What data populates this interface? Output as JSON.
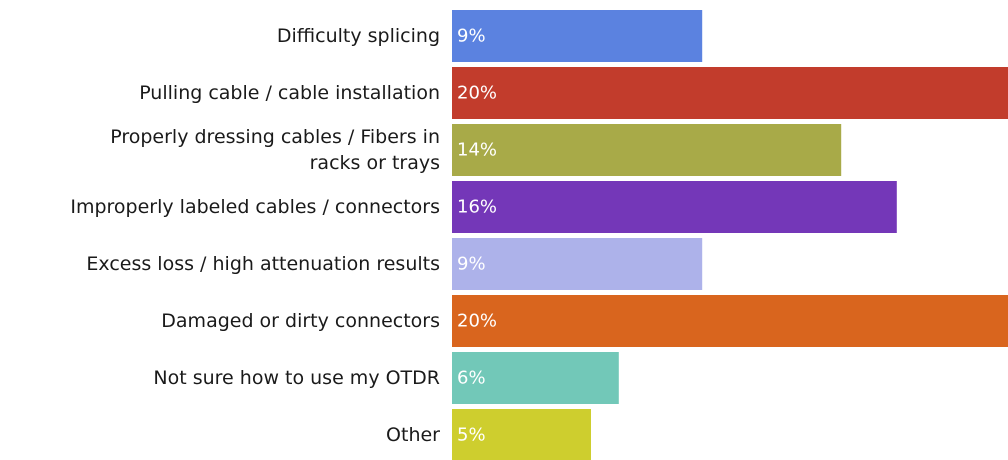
{
  "chart_data": {
    "type": "bar",
    "orientation": "horizontal",
    "title": "",
    "xlabel": "",
    "ylabel": "",
    "categories": [
      "Difficulty splicing",
      "Pulling cable / cable installation",
      "Properly dressing cables / Fibers in racks or trays",
      "Improperly labeled cables / connectors",
      "Excess loss / high attenuation results",
      "Damaged or dirty connectors",
      "Not sure how to use my OTDR",
      "Other"
    ],
    "category_label_lines": [
      [
        "Difficulty splicing"
      ],
      [
        "Pulling cable / cable installation"
      ],
      [
        "Properly dressing cables / Fibers in",
        "racks or trays"
      ],
      [
        "Improperly labeled cables / connectors"
      ],
      [
        "Excess loss / high attenuation results"
      ],
      [
        "Damaged or dirty connectors"
      ],
      [
        "Not sure how to use my OTDR"
      ],
      [
        "Other"
      ]
    ],
    "values": [
      9,
      20,
      14,
      16,
      9,
      20,
      6,
      5
    ],
    "value_labels": [
      "9%",
      "20%",
      "14%",
      "16%",
      "9%",
      "20%",
      "6%",
      "5%"
    ],
    "unit": "%",
    "xlim": [
      0,
      20
    ],
    "colors": [
      "#5b82e0",
      "#c23c2c",
      "#a8aa48",
      "#7437b8",
      "#adb2ea",
      "#d9651e",
      "#72c8b8",
      "#cece2e"
    ],
    "grid": false,
    "legend": "none"
  }
}
